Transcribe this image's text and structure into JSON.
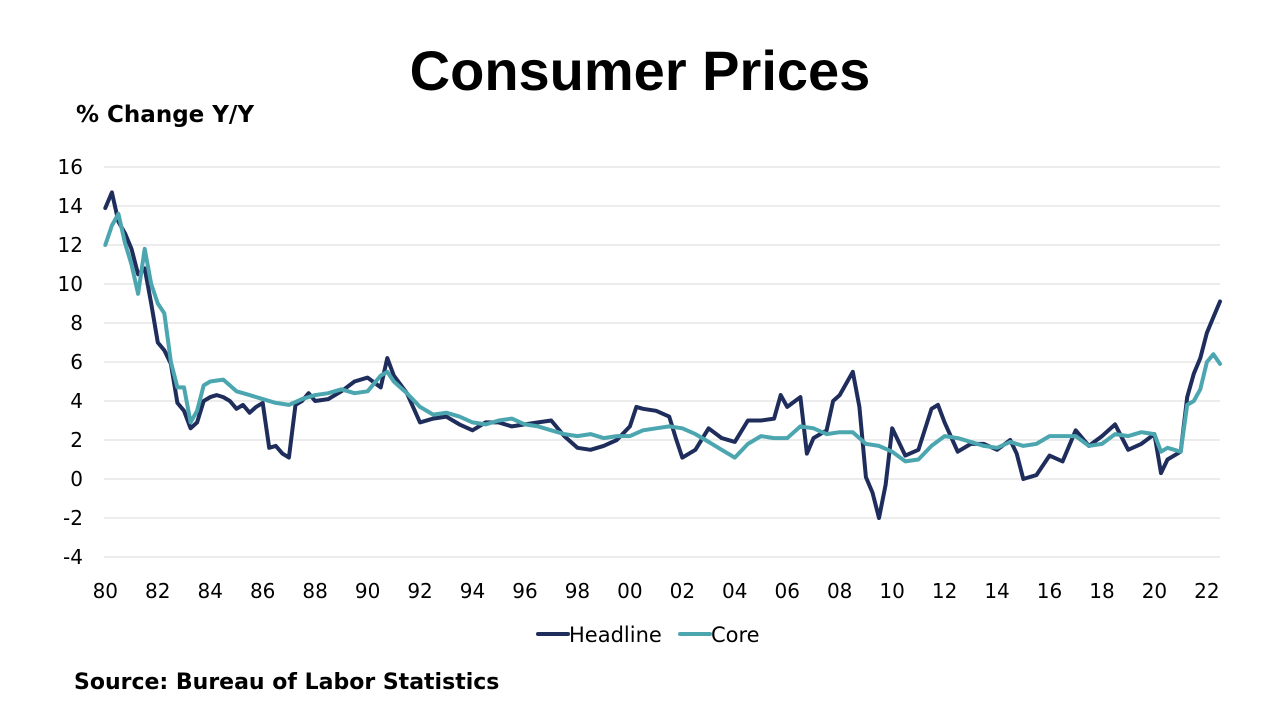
{
  "chart_data": {
    "type": "line",
    "title": "Consumer Prices",
    "ylabel": "% Change Y/Y",
    "source": "Source: Bureau of Labor Statistics",
    "ylim": [
      -4,
      16
    ],
    "yticks": [
      -4,
      -2,
      0,
      2,
      4,
      6,
      8,
      10,
      12,
      14,
      16
    ],
    "ytick_labels": [
      "-4",
      "-2",
      "0",
      "2",
      "4",
      "6",
      "8",
      "10",
      "12",
      "14",
      "16"
    ],
    "xlim": [
      1980,
      2022.5
    ],
    "xticks": [
      1980,
      1982,
      1984,
      1986,
      1988,
      1990,
      1992,
      1994,
      1996,
      1998,
      2000,
      2002,
      2004,
      2006,
      2008,
      2010,
      2012,
      2014,
      2016,
      2018,
      2020,
      2022
    ],
    "xtick_labels": [
      "80",
      "82",
      "84",
      "86",
      "88",
      "90",
      "92",
      "94",
      "96",
      "98",
      "00",
      "02",
      "04",
      "06",
      "08",
      "10",
      "12",
      "14",
      "16",
      "18",
      "20",
      "22"
    ],
    "legend": "bottom-center",
    "grid": true,
    "series": [
      {
        "name": "Headline",
        "color": "#1f2d5c",
        "x": [
          1980.0,
          1980.25,
          1980.5,
          1980.75,
          1981.0,
          1981.25,
          1981.5,
          1981.75,
          1982.0,
          1982.25,
          1982.5,
          1982.75,
          1983.0,
          1983.25,
          1983.5,
          1983.75,
          1984.0,
          1984.25,
          1984.5,
          1984.75,
          1985.0,
          1985.25,
          1985.5,
          1985.75,
          1986.0,
          1986.25,
          1986.5,
          1986.75,
          1987.0,
          1987.25,
          1987.5,
          1987.75,
          1988.0,
          1988.5,
          1989.0,
          1989.5,
          1990.0,
          1990.5,
          1990.75,
          1991.0,
          1991.5,
          1992.0,
          1992.5,
          1993.0,
          1993.5,
          1994.0,
          1994.5,
          1995.0,
          1995.5,
          1996.0,
          1996.5,
          1997.0,
          1997.5,
          1998.0,
          1998.5,
          1999.0,
          1999.5,
          2000.0,
          2000.25,
          2000.5,
          2001.0,
          2001.5,
          2001.75,
          2002.0,
          2002.5,
          2003.0,
          2003.5,
          2004.0,
          2004.5,
          2005.0,
          2005.5,
          2005.75,
          2006.0,
          2006.5,
          2006.75,
          2007.0,
          2007.5,
          2007.75,
          2008.0,
          2008.5,
          2008.75,
          2009.0,
          2009.25,
          2009.5,
          2009.75,
          2010.0,
          2010.5,
          2011.0,
          2011.5,
          2011.75,
          2012.0,
          2012.5,
          2013.0,
          2013.5,
          2014.0,
          2014.5,
          2014.75,
          2015.0,
          2015.5,
          2016.0,
          2016.5,
          2017.0,
          2017.5,
          2018.0,
          2018.5,
          2019.0,
          2019.5,
          2020.0,
          2020.25,
          2020.5,
          2021.0,
          2021.25,
          2021.5,
          2021.75,
          2022.0,
          2022.25,
          2022.5
        ],
        "values": [
          13.9,
          14.7,
          13.2,
          12.6,
          11.8,
          10.5,
          10.8,
          9.0,
          7.0,
          6.6,
          5.9,
          3.9,
          3.5,
          2.6,
          2.9,
          4.0,
          4.2,
          4.3,
          4.2,
          4.0,
          3.6,
          3.8,
          3.4,
          3.7,
          3.9,
          1.6,
          1.7,
          1.3,
          1.1,
          3.8,
          4.0,
          4.4,
          4.0,
          4.1,
          4.5,
          5.0,
          5.2,
          4.7,
          6.2,
          5.3,
          4.4,
          2.9,
          3.1,
          3.2,
          2.8,
          2.5,
          2.9,
          2.9,
          2.7,
          2.8,
          2.9,
          3.0,
          2.2,
          1.6,
          1.5,
          1.7,
          2.0,
          2.7,
          3.7,
          3.6,
          3.5,
          3.2,
          2.1,
          1.1,
          1.5,
          2.6,
          2.1,
          1.9,
          3.0,
          3.0,
          3.1,
          4.3,
          3.7,
          4.2,
          1.3,
          2.1,
          2.5,
          4.0,
          4.3,
          5.5,
          3.7,
          0.1,
          -0.7,
          -2.0,
          -0.3,
          2.6,
          1.2,
          1.5,
          3.6,
          3.8,
          2.9,
          1.4,
          1.8,
          1.8,
          1.5,
          2.0,
          1.3,
          0.0,
          0.2,
          1.2,
          0.9,
          2.5,
          1.7,
          2.2,
          2.8,
          1.5,
          1.8,
          2.3,
          0.3,
          1.0,
          1.4,
          4.2,
          5.4,
          6.2,
          7.5,
          8.3,
          9.1
        ]
      },
      {
        "name": "Core",
        "color": "#4ba6b0",
        "x": [
          1980.0,
          1980.25,
          1980.5,
          1980.75,
          1981.0,
          1981.25,
          1981.5,
          1981.75,
          1982.0,
          1982.25,
          1982.5,
          1982.75,
          1983.0,
          1983.25,
          1983.5,
          1983.75,
          1984.0,
          1984.5,
          1985.0,
          1985.5,
          1986.0,
          1986.5,
          1987.0,
          1987.5,
          1988.0,
          1988.5,
          1989.0,
          1989.5,
          1990.0,
          1990.5,
          1990.75,
          1991.0,
          1991.5,
          1992.0,
          1992.5,
          1993.0,
          1993.5,
          1994.0,
          1994.5,
          1995.0,
          1995.5,
          1996.0,
          1996.5,
          1997.0,
          1997.5,
          1998.0,
          1998.5,
          1999.0,
          1999.5,
          2000.0,
          2000.5,
          2001.0,
          2001.5,
          2002.0,
          2002.5,
          2003.0,
          2003.5,
          2004.0,
          2004.5,
          2005.0,
          2005.5,
          2006.0,
          2006.5,
          2007.0,
          2007.5,
          2008.0,
          2008.5,
          2009.0,
          2009.5,
          2010.0,
          2010.5,
          2011.0,
          2011.5,
          2012.0,
          2012.5,
          2013.0,
          2013.5,
          2014.0,
          2014.5,
          2015.0,
          2015.5,
          2016.0,
          2016.5,
          2017.0,
          2017.5,
          2018.0,
          2018.5,
          2019.0,
          2019.5,
          2020.0,
          2020.25,
          2020.5,
          2021.0,
          2021.25,
          2021.5,
          2021.75,
          2022.0,
          2022.25,
          2022.5
        ],
        "values": [
          12.0,
          13.0,
          13.6,
          12.1,
          11.0,
          9.5,
          11.8,
          10.0,
          9.0,
          8.5,
          6.0,
          4.7,
          4.7,
          2.9,
          3.5,
          4.8,
          5.0,
          5.1,
          4.5,
          4.3,
          4.1,
          3.9,
          3.8,
          4.1,
          4.3,
          4.4,
          4.6,
          4.4,
          4.5,
          5.3,
          5.5,
          5.0,
          4.4,
          3.7,
          3.3,
          3.4,
          3.2,
          2.9,
          2.8,
          3.0,
          3.1,
          2.8,
          2.7,
          2.5,
          2.3,
          2.2,
          2.3,
          2.1,
          2.2,
          2.2,
          2.5,
          2.6,
          2.7,
          2.6,
          2.3,
          1.9,
          1.5,
          1.1,
          1.8,
          2.2,
          2.1,
          2.1,
          2.7,
          2.6,
          2.3,
          2.4,
          2.4,
          1.8,
          1.7,
          1.4,
          0.9,
          1.0,
          1.7,
          2.2,
          2.1,
          1.9,
          1.7,
          1.6,
          1.9,
          1.7,
          1.8,
          2.2,
          2.2,
          2.2,
          1.7,
          1.8,
          2.3,
          2.2,
          2.4,
          2.3,
          1.4,
          1.6,
          1.4,
          3.8,
          4.0,
          4.6,
          6.0,
          6.4,
          5.9
        ]
      }
    ]
  }
}
